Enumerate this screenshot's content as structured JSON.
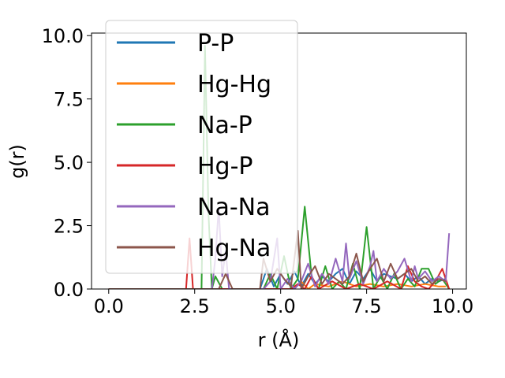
{
  "chart_data": {
    "type": "line",
    "title": "",
    "xlabel": "r (Å)",
    "ylabel": "g(r)",
    "xlim": [
      -0.5,
      10.4
    ],
    "ylim": [
      0,
      10.1
    ],
    "xticks": [
      "0.0",
      "2.5",
      "5.0",
      "7.5",
      "10.0"
    ],
    "yticks": [
      "0.0",
      "2.5",
      "5.0",
      "7.5",
      "10.0"
    ],
    "grid": false,
    "legend_position": "top-left",
    "series": [
      {
        "name": "P-P",
        "color": "#1f77b4",
        "x": [
          0,
          0.5,
          1.0,
          1.5,
          2.0,
          2.5,
          3.0,
          3.5,
          4.0,
          4.4,
          4.6,
          4.8,
          5.0,
          5.2,
          5.4,
          5.6,
          5.8,
          6.0,
          6.2,
          6.4,
          6.6,
          6.8,
          7.0,
          7.2,
          7.4,
          7.6,
          7.8,
          8.0,
          8.2,
          8.4,
          8.6,
          8.8,
          9.0,
          9.2,
          9.4,
          9.6,
          9.8
        ],
        "y": [
          0,
          0,
          0,
          0,
          0,
          0,
          0,
          0,
          0,
          0,
          0.8,
          0.1,
          0.6,
          0.2,
          0.7,
          0.1,
          0.6,
          0.2,
          0.5,
          0.3,
          0.6,
          0.8,
          0.2,
          0.7,
          0.4,
          0.8,
          0.3,
          0.6,
          0.5,
          0.4,
          0.6,
          0.3,
          0.5,
          0.2,
          0.4,
          0.3,
          0.4
        ]
      },
      {
        "name": "Hg-Hg",
        "color": "#ff7f0e",
        "x": [
          0,
          1.0,
          2.0,
          3.0,
          4.0,
          5.0,
          5.4,
          5.6,
          5.8,
          6.0,
          6.4,
          6.8,
          7.2,
          7.6,
          8.0,
          8.4,
          8.8,
          9.2,
          9.6,
          9.8
        ],
        "y": [
          0,
          0,
          0,
          0,
          0,
          0,
          0,
          0.3,
          0,
          0.2,
          0.1,
          0.3,
          0.1,
          0.2,
          0.1,
          0.2,
          0.1,
          0.2,
          0.1,
          0.1
        ]
      },
      {
        "name": "Na-P",
        "color": "#2ca02c",
        "x": [
          0,
          0.5,
          1.0,
          1.5,
          2.0,
          2.5,
          2.7,
          2.8,
          2.9,
          3.0,
          3.1,
          3.3,
          3.5,
          3.7,
          3.9,
          4.1,
          4.3,
          4.5,
          4.7,
          4.9,
          5.1,
          5.3,
          5.5,
          5.7,
          5.9,
          6.1,
          6.3,
          6.5,
          6.7,
          6.9,
          7.1,
          7.3,
          7.5,
          7.7,
          7.9,
          8.1,
          8.3,
          8.5,
          8.7,
          8.9,
          9.1,
          9.3,
          9.5,
          9.7,
          9.9
        ],
        "y": [
          0,
          0,
          0,
          0,
          0,
          0,
          0,
          9.6,
          3.0,
          0,
          0.5,
          0,
          0,
          0,
          0,
          0,
          0,
          0,
          0.6,
          0,
          1.3,
          0,
          0.4,
          3.25,
          0.5,
          0,
          0.9,
          0,
          0.3,
          0,
          1.0,
          0,
          2.45,
          0,
          0.5,
          0,
          0.6,
          0,
          0.4,
          0.1,
          0.8,
          0.8,
          0.2,
          0.4,
          0
        ]
      },
      {
        "name": "Hg-P",
        "color": "#d62728",
        "x": [
          0,
          0.5,
          1.0,
          1.5,
          2.0,
          2.25,
          2.35,
          2.45,
          2.6,
          2.8,
          3.0,
          3.4,
          3.8,
          4.2,
          4.6,
          5.0,
          5.3,
          5.5,
          5.7,
          5.9,
          6.1,
          6.5,
          6.9,
          7.3,
          7.7,
          8.1,
          8.5,
          8.7,
          8.9,
          9.1,
          9.3,
          9.5,
          9.7,
          9.9
        ],
        "y": [
          0,
          0,
          0,
          0,
          0,
          0,
          2.0,
          0,
          0,
          0,
          0,
          0,
          0,
          0,
          0,
          0,
          0,
          0.2,
          0,
          0.5,
          0,
          0.3,
          0,
          0.2,
          0,
          0.3,
          0,
          0.9,
          0.3,
          0.1,
          0,
          0.3,
          0.8,
          0
        ]
      },
      {
        "name": "Na-Na",
        "color": "#9467bd",
        "x": [
          0,
          0.5,
          1.0,
          1.5,
          2.0,
          2.5,
          3.0,
          3.1,
          3.2,
          3.3,
          3.4,
          3.5,
          3.7,
          4.0,
          4.5,
          4.7,
          4.9,
          5.0,
          5.2,
          5.4,
          5.6,
          5.8,
          6.0,
          6.2,
          6.4,
          6.6,
          6.8,
          6.9,
          7.0,
          7.2,
          7.4,
          7.6,
          7.7,
          7.8,
          8.0,
          8.2,
          8.4,
          8.6,
          8.8,
          8.9,
          9.0,
          9.2,
          9.4,
          9.6,
          9.8,
          9.9
        ],
        "y": [
          0,
          0,
          0,
          0,
          0,
          0,
          0,
          1.2,
          3.2,
          0.5,
          1.5,
          0,
          0,
          0,
          0,
          0.3,
          2.0,
          0,
          0.4,
          0,
          0.3,
          1.0,
          0.1,
          0.6,
          0.2,
          1.2,
          0.3,
          1.8,
          0.4,
          1.1,
          0.2,
          0.9,
          1.5,
          0.3,
          0.8,
          0.4,
          0.7,
          1.2,
          0.3,
          0.9,
          0.4,
          0.7,
          0.3,
          0.5,
          0.3,
          2.2
        ]
      },
      {
        "name": "Hg-Na",
        "color": "#8c564b",
        "x": [
          0,
          0.5,
          1.0,
          1.5,
          2.0,
          2.5,
          3.0,
          3.2,
          3.4,
          3.6,
          3.8,
          4.0,
          4.2,
          4.4,
          4.5,
          4.7,
          4.9,
          5.1,
          5.3,
          5.5,
          5.6,
          5.8,
          6.0,
          6.2,
          6.4,
          6.6,
          6.8,
          7.0,
          7.2,
          7.4,
          7.6,
          7.8,
          8.0,
          8.2,
          8.4,
          8.6,
          8.8,
          9.0,
          9.2,
          9.4,
          9.6,
          9.8
        ],
        "y": [
          0,
          0,
          0,
          0,
          0,
          0,
          0,
          0,
          0.6,
          0,
          0,
          0,
          0,
          0,
          1.2,
          0.3,
          0.8,
          0.4,
          0.1,
          2.3,
          0,
          0.5,
          0.9,
          0.2,
          0.6,
          0.4,
          0.2,
          0.5,
          1.4,
          0.3,
          0.8,
          1.2,
          0.3,
          1.0,
          0.4,
          0.6,
          0.8,
          0.3,
          0.5,
          0.2,
          0.4,
          0.3
        ]
      }
    ]
  }
}
